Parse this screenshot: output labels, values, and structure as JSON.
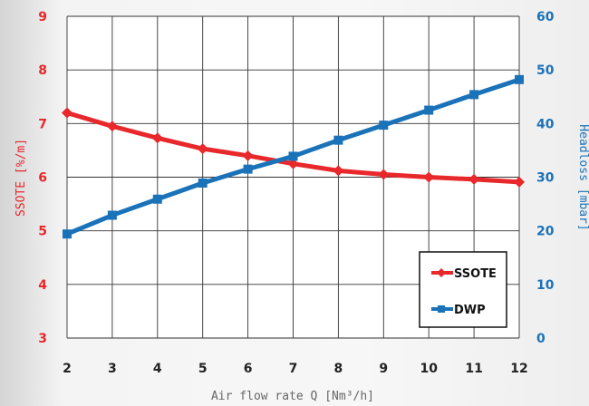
{
  "chart_data": {
    "type": "line",
    "x": [
      2,
      3,
      4,
      5,
      6,
      7,
      8,
      9,
      10,
      11,
      12
    ],
    "xlabel": "Air flow rate Q [Nm³/h]",
    "xlim": [
      2,
      12
    ],
    "grid": true,
    "legend_position": "bottom-right",
    "series": [
      {
        "name": "SSOTE",
        "axis": "left",
        "color": "#e8282b",
        "values": [
          7.2,
          6.95,
          6.73,
          6.53,
          6.4,
          6.25,
          6.12,
          6.05,
          6.0,
          5.96,
          5.91
        ]
      },
      {
        "name": "DWP",
        "axis": "right",
        "color": "#1a72b9",
        "values": [
          19.4,
          22.9,
          25.9,
          28.9,
          31.5,
          33.9,
          36.9,
          39.7,
          42.5,
          45.4,
          48.2
        ]
      }
    ],
    "left_axis": {
      "label": "SSOTE [%/m]",
      "ylim": [
        3,
        9
      ],
      "ticks": [
        3,
        4,
        5,
        6,
        7,
        8,
        9
      ],
      "color": "#e8282b"
    },
    "right_axis": {
      "label": "Headloss [mbar]",
      "ylim": [
        0,
        60
      ],
      "ticks": [
        0,
        10,
        20,
        30,
        40,
        50,
        60
      ],
      "color": "#1a72b9"
    }
  }
}
